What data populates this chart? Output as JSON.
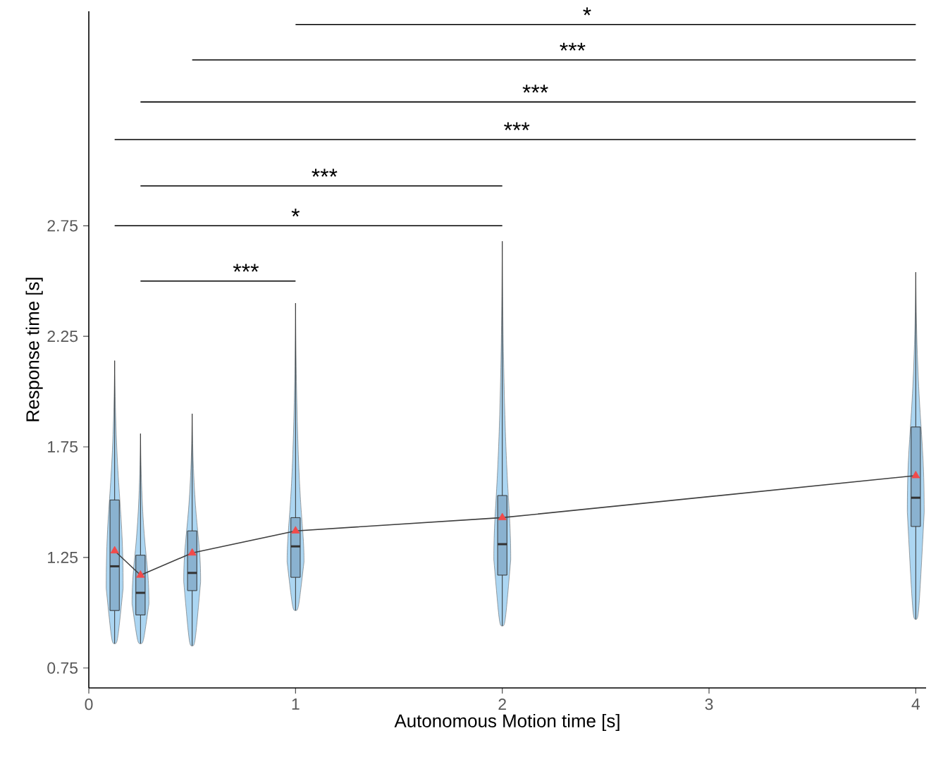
{
  "chart_data": {
    "type": "box",
    "xlabel": "Autonomous Motion time [s]",
    "ylabel": "Response time [s]",
    "x": [
      0.125,
      0.25,
      0.5,
      1,
      2,
      4
    ],
    "xlim": [
      0,
      4.05
    ],
    "xticks": [
      0,
      1,
      2,
      3,
      4
    ],
    "ylim": [
      0.66,
      3.72
    ],
    "yticks": [
      0.75,
      1.25,
      1.75,
      2.25,
      2.75
    ],
    "grid": false,
    "series": [
      {
        "type": "box",
        "color": "#8ab2d0",
        "boxes": [
          {
            "low": 0.86,
            "q1": 1.01,
            "median": 1.21,
            "q3": 1.51,
            "high": 2.14
          },
          {
            "low": 0.86,
            "q1": 0.99,
            "median": 1.09,
            "q3": 1.26,
            "high": 1.81
          },
          {
            "low": 0.85,
            "q1": 1.1,
            "median": 1.18,
            "q3": 1.37,
            "high": 1.9
          },
          {
            "low": 1.01,
            "q1": 1.16,
            "median": 1.3,
            "q3": 1.43,
            "high": 2.4
          },
          {
            "low": 0.94,
            "q1": 1.17,
            "median": 1.31,
            "q3": 1.53,
            "high": 2.68
          },
          {
            "low": 0.97,
            "q1": 1.39,
            "median": 1.52,
            "q3": 1.84,
            "high": 2.54
          }
        ]
      },
      {
        "type": "line",
        "color": "#404040",
        "marker": "none",
        "values": [
          1.28,
          1.17,
          1.27,
          1.37,
          1.43,
          1.62
        ]
      },
      {
        "type": "scatter",
        "color": "#f24a4a",
        "marker": "triangle",
        "values": [
          1.28,
          1.17,
          1.27,
          1.37,
          1.43,
          1.62
        ]
      },
      {
        "type": "line",
        "color": "#000000",
        "marker": "none",
        "x": [
          1,
          4
        ],
        "values": [
          3.66,
          3.66
        ]
      },
      {
        "type": "line",
        "color": "#000000",
        "marker": "none",
        "x": [
          0.5,
          4
        ],
        "values": [
          3.5,
          3.5
        ]
      },
      {
        "type": "line",
        "color": "#000000",
        "marker": "none",
        "x": [
          0.25,
          4
        ],
        "values": [
          3.31,
          3.31
        ]
      },
      {
        "type": "line",
        "color": "#000000",
        "marker": "none",
        "x": [
          0.125,
          4
        ],
        "values": [
          3.14,
          3.14
        ]
      },
      {
        "type": "line",
        "color": "#000000",
        "marker": "none",
        "x": [
          0.25,
          2
        ],
        "values": [
          2.93,
          2.93
        ]
      },
      {
        "type": "line",
        "color": "#000000",
        "marker": "none",
        "x": [
          0.125,
          2
        ],
        "values": [
          2.75,
          2.75
        ]
      },
      {
        "type": "line",
        "color": "#000000",
        "marker": "none",
        "x": [
          0.25,
          1
        ],
        "values": [
          2.5,
          2.5
        ]
      }
    ],
    "annotations": [
      {
        "text": "*",
        "x": 2.41,
        "y": 3.66
      },
      {
        "text": "***",
        "x": 2.34,
        "y": 3.5
      },
      {
        "text": "***",
        "x": 2.16,
        "y": 3.31
      },
      {
        "text": "***",
        "x": 2.07,
        "y": 3.14
      },
      {
        "text": "***",
        "x": 1.14,
        "y": 2.93
      },
      {
        "text": "*",
        "x": 1.0,
        "y": 2.75
      },
      {
        "text": "***",
        "x": 0.76,
        "y": 2.5
      }
    ]
  }
}
